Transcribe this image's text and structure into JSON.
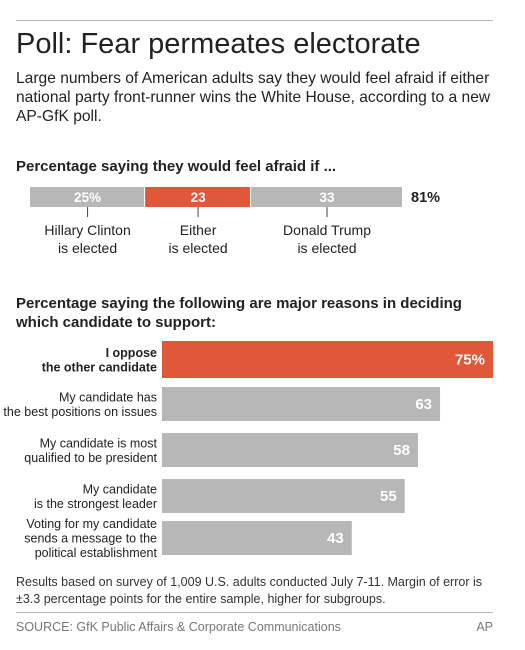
{
  "headline": "Poll: Fear permeates electorate",
  "subtitle": "Large numbers of American adults say they would feel afraid if either national party front-runner wins the White House, according to a new AP-GfK poll.",
  "colors": {
    "highlight": "#e1573a",
    "neutral": "#b7b7b7",
    "text": "#222222",
    "rule": "#b5b5b5"
  },
  "chart_data": [
    {
      "type": "bar",
      "orientation": "horizontal-stacked",
      "title": "Percentage saying they would feel afraid if ...",
      "categories": [
        "Hillary Clinton is elected",
        "Either is elected",
        "Donald Trump is elected"
      ],
      "category_lines": [
        [
          "Hillary Clinton",
          "is elected"
        ],
        [
          "Either",
          "is elected"
        ],
        [
          "Donald Trump",
          "is elected"
        ]
      ],
      "values": [
        25,
        23,
        33
      ],
      "value_labels": [
        "25%",
        "23",
        "33"
      ],
      "highlight": [
        false,
        true,
        false
      ],
      "total_label": "81%",
      "total": 81
    },
    {
      "type": "bar",
      "orientation": "horizontal",
      "title": "Percentage saying the following are major reasons in deciding which candidate to support:",
      "categories": [
        "I oppose the other candidate",
        "My candidate has the best positions on issues",
        "My candidate is most qualified to be president",
        "My candidate is the strongest leader",
        "Voting for my candidate sends a message to the political establishment"
      ],
      "category_lines": [
        [
          "I oppose",
          "the other candidate"
        ],
        [
          "My candidate has",
          "the best positions on issues"
        ],
        [
          "My candidate is most",
          "qualified to be president"
        ],
        [
          "My candidate",
          "is the strongest leader"
        ],
        [
          "Voting for my candidate",
          "sends a message to the",
          "political establishment"
        ]
      ],
      "values": [
        75,
        63,
        58,
        55,
        43
      ],
      "value_labels": [
        "75%",
        "63",
        "58",
        "55",
        "43"
      ],
      "highlight": [
        true,
        false,
        false,
        false,
        false
      ],
      "xlim": [
        0,
        75
      ]
    }
  ],
  "footnote": "Results based on survey of 1,009 U.S. adults conducted July 7-11. Margin of error is ±3.3 percentage points for the entire sample, higher for subgroups.",
  "source": "SOURCE: GfK Public Affairs & Corporate Communications",
  "credit": "AP"
}
